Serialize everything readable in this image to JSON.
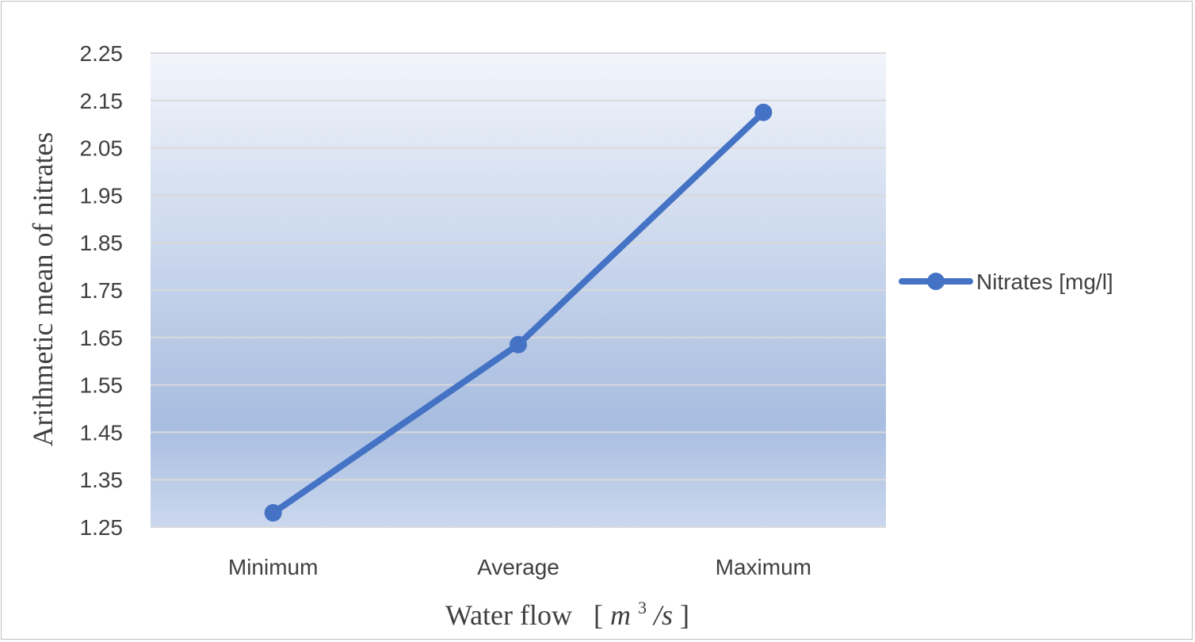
{
  "chart_data": {
    "type": "line",
    "categories": [
      "Minimum",
      "Average",
      "Maximum"
    ],
    "series": [
      {
        "name": "Nitrates [mg/l]",
        "values": [
          1.28,
          1.635,
          2.125
        ],
        "color": "#4472c4"
      }
    ],
    "ylabel": "Arithmetic mean of nitrates",
    "xlabel": {
      "text": "Water flow",
      "unit_open": "[",
      "unit_var": "m",
      "unit_sup": "3",
      "unit_rest": "/s",
      "unit_close": "]"
    },
    "ylim": [
      1.25,
      2.25
    ],
    "yticks": [
      "2.25",
      "2.15",
      "2.05",
      "1.95",
      "1.85",
      "1.75",
      "1.65",
      "1.55",
      "1.45",
      "1.35",
      "1.25"
    ],
    "grid": true,
    "legend_position": "right",
    "background_gradient": {
      "top": "#f2f5fb",
      "middle": "#a8bde0",
      "bottom": "#cbd8ee"
    },
    "gridline_color": "#d9d9d9"
  }
}
